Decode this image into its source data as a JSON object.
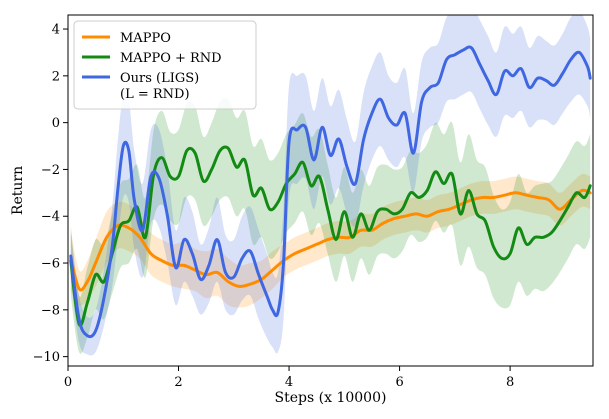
{
  "chart_data": {
    "type": "line",
    "title": "",
    "xlabel": "Steps (x 10000)",
    "ylabel": "Return",
    "xlim": [
      0,
      9.5
    ],
    "ylim": [
      -10.4,
      4.6
    ],
    "xticks": [
      0,
      2,
      4,
      6,
      8
    ],
    "yticks": [
      -10,
      -8,
      -6,
      -4,
      -2,
      0,
      2,
      4
    ],
    "grid": false,
    "legend_position": "top-left",
    "series": [
      {
        "name": "MAPPO",
        "color": "#ff8c00",
        "x": [
          0.05,
          0.2,
          0.35,
          0.5,
          0.7,
          0.9,
          1.1,
          1.3,
          1.5,
          1.7,
          1.9,
          2.1,
          2.3,
          2.5,
          2.7,
          2.9,
          3.1,
          3.3,
          3.5,
          3.7,
          3.9,
          4.1,
          4.3,
          4.5,
          4.7,
          4.9,
          5.1,
          5.3,
          5.5,
          5.7,
          5.9,
          6.1,
          6.3,
          6.5,
          6.7,
          6.9,
          7.1,
          7.3,
          7.5,
          7.7,
          7.9,
          8.1,
          8.3,
          8.5,
          8.7,
          8.9,
          9.1,
          9.3,
          9.45
        ],
        "y": [
          -5.8,
          -7.1,
          -6.8,
          -6.0,
          -4.9,
          -4.4,
          -4.5,
          -4.9,
          -5.6,
          -5.9,
          -6.1,
          -6.1,
          -6.3,
          -6.5,
          -6.4,
          -6.8,
          -7.0,
          -6.9,
          -6.7,
          -6.3,
          -5.9,
          -5.6,
          -5.4,
          -5.2,
          -5.0,
          -4.9,
          -4.9,
          -4.6,
          -4.6,
          -4.3,
          -4.1,
          -4.0,
          -3.9,
          -4.0,
          -3.8,
          -3.7,
          -3.5,
          -3.3,
          -3.2,
          -3.2,
          -3.1,
          -3.0,
          -3.1,
          -3.2,
          -3.3,
          -3.7,
          -3.3,
          -2.9,
          -3.0
        ],
        "lower": [
          -7.2,
          -7.8,
          -7.6,
          -7.0,
          -6.0,
          -5.4,
          -5.5,
          -5.8,
          -6.5,
          -6.8,
          -7.0,
          -7.1,
          -7.2,
          -7.5,
          -7.4,
          -7.8,
          -7.9,
          -7.8,
          -7.5,
          -7.1,
          -6.6,
          -6.3,
          -6.1,
          -5.9,
          -5.7,
          -5.6,
          -5.6,
          -5.3,
          -5.3,
          -5.0,
          -4.8,
          -4.7,
          -4.6,
          -4.7,
          -4.5,
          -4.4,
          -4.2,
          -4.0,
          -3.9,
          -3.9,
          -3.8,
          -3.7,
          -3.8,
          -3.9,
          -4.0,
          -4.4,
          -4.0,
          -3.6,
          -3.7
        ],
        "upper": [
          -4.6,
          -6.3,
          -5.9,
          -5.0,
          -3.8,
          -3.4,
          -3.5,
          -4.0,
          -4.7,
          -5.0,
          -5.2,
          -5.1,
          -5.4,
          -5.5,
          -5.4,
          -5.8,
          -6.1,
          -6.0,
          -5.9,
          -5.5,
          -5.2,
          -4.9,
          -4.7,
          -4.5,
          -4.3,
          -4.2,
          -4.2,
          -3.9,
          -3.9,
          -3.6,
          -3.4,
          -3.3,
          -3.2,
          -3.3,
          -3.1,
          -3.0,
          -2.8,
          -2.6,
          -2.5,
          -2.5,
          -2.4,
          -2.3,
          -2.4,
          -2.5,
          -2.6,
          -3.0,
          -2.6,
          -2.2,
          -2.3
        ]
      },
      {
        "name": "MAPPO + RND",
        "color": "#138a13",
        "x": [
          0.05,
          0.2,
          0.35,
          0.5,
          0.65,
          0.8,
          0.95,
          1.1,
          1.25,
          1.4,
          1.55,
          1.7,
          1.85,
          2.0,
          2.15,
          2.3,
          2.45,
          2.6,
          2.75,
          2.9,
          3.05,
          3.2,
          3.35,
          3.5,
          3.65,
          3.8,
          3.95,
          4.1,
          4.25,
          4.4,
          4.55,
          4.7,
          4.85,
          5.0,
          5.15,
          5.3,
          5.45,
          5.6,
          5.75,
          5.9,
          6.05,
          6.2,
          6.35,
          6.5,
          6.65,
          6.8,
          6.95,
          7.1,
          7.25,
          7.4,
          7.55,
          7.7,
          7.85,
          8.0,
          8.15,
          8.3,
          8.45,
          8.6,
          8.75,
          8.9,
          9.05,
          9.2,
          9.35,
          9.45
        ],
        "y": [
          -5.9,
          -8.6,
          -7.7,
          -6.5,
          -6.8,
          -5.6,
          -4.4,
          -4.2,
          -3.6,
          -4.9,
          -2.2,
          -1.5,
          -2.3,
          -2.3,
          -1.2,
          -1.3,
          -2.5,
          -2.0,
          -1.2,
          -1.1,
          -1.9,
          -1.6,
          -3.1,
          -2.8,
          -3.7,
          -3.4,
          -2.6,
          -2.2,
          -1.7,
          -2.7,
          -2.3,
          -3.7,
          -5.0,
          -3.8,
          -4.9,
          -3.9,
          -4.6,
          -3.8,
          -3.7,
          -3.9,
          -3.7,
          -3.0,
          -3.2,
          -2.9,
          -2.1,
          -2.6,
          -2.2,
          -3.9,
          -2.9,
          -3.9,
          -4.2,
          -5.3,
          -5.8,
          -5.6,
          -4.5,
          -5.2,
          -4.9,
          -4.9,
          -4.7,
          -4.2,
          -3.6,
          -3.0,
          -3.2,
          -2.7
        ],
        "lower": [
          -7.4,
          -9.8,
          -9.2,
          -8.0,
          -8.4,
          -7.3,
          -6.2,
          -6.0,
          -5.4,
          -6.6,
          -4.1,
          -3.5,
          -4.2,
          -4.3,
          -3.2,
          -3.3,
          -4.4,
          -4.0,
          -3.3,
          -3.2,
          -4.0,
          -3.7,
          -5.2,
          -4.9,
          -5.8,
          -5.5,
          -4.7,
          -4.3,
          -3.8,
          -4.8,
          -4.3,
          -5.6,
          -6.8,
          -5.7,
          -6.8,
          -5.8,
          -6.5,
          -5.7,
          -5.6,
          -5.8,
          -5.5,
          -4.8,
          -5.1,
          -4.9,
          -4.2,
          -4.7,
          -4.4,
          -6.1,
          -5.3,
          -6.2,
          -6.5,
          -7.5,
          -7.9,
          -7.8,
          -6.8,
          -7.4,
          -7.1,
          -7.2,
          -6.9,
          -6.4,
          -5.8,
          -5.2,
          -5.4,
          -4.9
        ],
        "upper": [
          -4.4,
          -7.4,
          -6.2,
          -5.0,
          -5.2,
          -3.9,
          -2.6,
          -2.4,
          -1.8,
          -3.2,
          -0.3,
          0.5,
          -0.4,
          -0.3,
          0.8,
          0.7,
          -0.6,
          0.0,
          0.9,
          1.0,
          0.2,
          0.5,
          -1.0,
          -0.7,
          -1.6,
          -1.3,
          -0.5,
          -0.1,
          0.4,
          -0.6,
          -0.3,
          -1.8,
          -3.2,
          -1.9,
          -3.0,
          -2.0,
          -2.7,
          -1.9,
          -1.8,
          -2.0,
          -1.9,
          -1.2,
          -1.3,
          -0.9,
          0.0,
          -0.5,
          0.0,
          -1.7,
          -0.5,
          -1.6,
          -1.9,
          -3.1,
          -3.7,
          -3.4,
          -2.2,
          -3.0,
          -2.7,
          -2.6,
          -2.5,
          -2.0,
          -1.4,
          -0.8,
          -1.0,
          -0.5
        ]
      },
      {
        "name": "Ours (LIGS)\n(L = RND)",
        "color": "#3f67e1",
        "x": [
          0.05,
          0.2,
          0.35,
          0.5,
          0.65,
          0.8,
          0.9,
          1.0,
          1.1,
          1.2,
          1.35,
          1.5,
          1.65,
          1.8,
          1.95,
          2.1,
          2.25,
          2.4,
          2.55,
          2.7,
          2.85,
          3.0,
          3.15,
          3.3,
          3.45,
          3.6,
          3.7,
          3.8,
          3.9,
          4.0,
          4.15,
          4.3,
          4.45,
          4.6,
          4.75,
          4.9,
          5.05,
          5.2,
          5.35,
          5.5,
          5.65,
          5.8,
          5.95,
          6.1,
          6.25,
          6.4,
          6.55,
          6.7,
          6.85,
          7.0,
          7.15,
          7.3,
          7.45,
          7.6,
          7.75,
          7.9,
          8.05,
          8.2,
          8.35,
          8.5,
          8.65,
          8.8,
          8.95,
          9.1,
          9.25,
          9.4,
          9.45
        ],
        "y": [
          -5.7,
          -8.4,
          -9.1,
          -8.9,
          -7.5,
          -5.3,
          -2.9,
          -1.0,
          -1.2,
          -3.3,
          -4.6,
          -2.3,
          -2.4,
          -4.0,
          -6.2,
          -5.0,
          -5.6,
          -6.7,
          -6.1,
          -5.0,
          -6.4,
          -6.6,
          -5.8,
          -5.5,
          -6.5,
          -7.4,
          -8.0,
          -8.1,
          -6.0,
          -0.8,
          -0.3,
          -0.2,
          -1.6,
          -0.2,
          -1.4,
          -0.7,
          -1.9,
          -2.6,
          -0.7,
          0.4,
          1.0,
          0.2,
          -0.1,
          0.4,
          -1.3,
          0.9,
          1.5,
          1.7,
          2.7,
          2.9,
          3.1,
          3.2,
          2.5,
          1.8,
          1.2,
          2.2,
          2.0,
          2.3,
          1.5,
          1.9,
          1.8,
          1.6,
          2.1,
          2.7,
          3.0,
          2.4,
          1.9
        ],
        "lower": [
          -6.7,
          -9.4,
          -9.9,
          -9.8,
          -8.7,
          -7.0,
          -5.0,
          -3.2,
          -3.4,
          -5.4,
          -6.6,
          -4.3,
          -4.5,
          -6.0,
          -7.8,
          -6.8,
          -7.4,
          -8.2,
          -7.7,
          -6.8,
          -8.0,
          -8.2,
          -7.6,
          -7.4,
          -8.4,
          -9.2,
          -9.6,
          -9.8,
          -8.4,
          -3.2,
          -2.6,
          -2.4,
          -3.7,
          -2.3,
          -3.5,
          -2.8,
          -3.9,
          -4.4,
          -2.7,
          -1.6,
          -1.0,
          -1.6,
          -1.9,
          -1.5,
          -3.0,
          -0.8,
          -0.2,
          0.0,
          0.9,
          1.0,
          1.2,
          1.3,
          0.6,
          -0.1,
          -0.6,
          0.3,
          0.2,
          0.5,
          -0.2,
          0.1,
          0.1,
          -0.1,
          0.4,
          0.9,
          1.2,
          0.7,
          0.2
        ],
        "upper": [
          -4.7,
          -7.4,
          -8.3,
          -8.0,
          -6.3,
          -3.6,
          -0.8,
          1.2,
          1.0,
          -1.2,
          -2.6,
          -0.3,
          -0.3,
          -2.0,
          -4.6,
          -3.2,
          -3.8,
          -5.2,
          -4.5,
          -3.2,
          -4.8,
          -5.0,
          -4.0,
          -3.6,
          -4.6,
          -5.6,
          -6.4,
          -6.4,
          -3.6,
          1.6,
          2.0,
          2.0,
          0.5,
          1.9,
          0.7,
          1.4,
          0.1,
          -0.8,
          1.3,
          2.4,
          3.0,
          2.0,
          1.7,
          2.3,
          0.4,
          2.6,
          3.2,
          3.4,
          4.5,
          4.8,
          5.0,
          5.1,
          4.4,
          3.7,
          3.0,
          4.1,
          3.8,
          4.1,
          3.2,
          3.7,
          3.5,
          3.3,
          3.8,
          4.5,
          4.8,
          4.1,
          3.6
        ]
      }
    ]
  }
}
